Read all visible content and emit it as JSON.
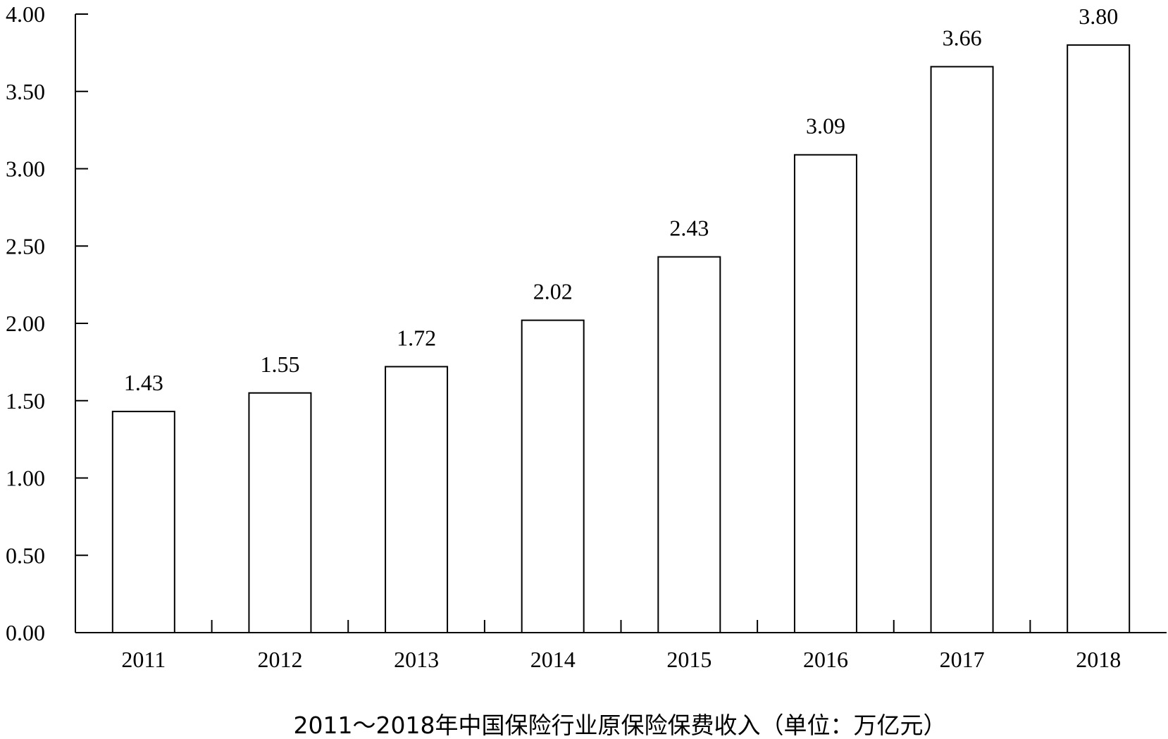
{
  "chart_data": {
    "type": "bar",
    "title": "2011～2018年中国保险行业原保险保费收入（单位：万亿元）",
    "xlabel": "",
    "ylabel": "",
    "categories": [
      "2011",
      "2012",
      "2013",
      "2014",
      "2015",
      "2016",
      "2017",
      "2018"
    ],
    "values": [
      1.43,
      1.55,
      1.72,
      2.02,
      2.43,
      3.09,
      3.66,
      3.8
    ],
    "value_labels": [
      "1.43",
      "1.55",
      "1.72",
      "2.02",
      "2.43",
      "3.09",
      "3.66",
      "3.80"
    ],
    "ylim": [
      0,
      4
    ],
    "yticks": [
      "0.00",
      "0.50",
      "1.00",
      "1.50",
      "2.00",
      "2.50",
      "3.00",
      "3.50",
      "4.00"
    ],
    "grid": false,
    "legend": "none",
    "bar_fill": "#ffffff",
    "bar_stroke": "#000000"
  }
}
